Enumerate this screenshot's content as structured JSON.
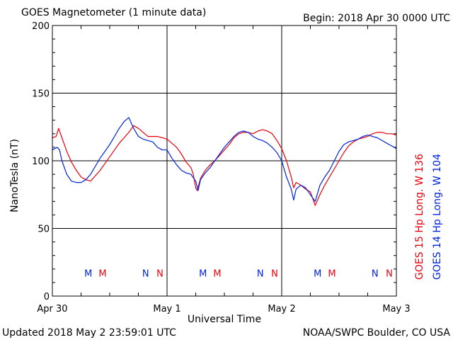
{
  "header": {
    "title": "GOES Magnetometer (1 minute data)",
    "begin": "Begin:  2018 Apr 30 0000 UTC"
  },
  "footer": {
    "updated": "Updated 2018 May  2 23:59:01 UTC",
    "source": "NOAA/SWPC Boulder, CO USA"
  },
  "chart_data": {
    "type": "line",
    "title": "GOES Magnetometer (1 minute data)",
    "xlabel": "Universal Time",
    "ylabel": "NanoTesla (nT)",
    "ylim": [
      0,
      200
    ],
    "xlim": [
      0,
      72
    ],
    "yticks": [
      0,
      50,
      100,
      150,
      200
    ],
    "xticks": [
      {
        "h": 0,
        "label": "Apr 30"
      },
      {
        "h": 24,
        "label": "May 1"
      },
      {
        "h": 48,
        "label": "May 2"
      },
      {
        "h": 72,
        "label": "May 3"
      }
    ],
    "grid": true,
    "legend_placement": "right, vertical",
    "series": [
      {
        "name": "GOES 15 Hp  Long. W 136",
        "color": "#e8000b",
        "points": [
          [
            0,
            117
          ],
          [
            0.8,
            118
          ],
          [
            1.3,
            124
          ],
          [
            2,
            117
          ],
          [
            3,
            107
          ],
          [
            4,
            99
          ],
          [
            5,
            93
          ],
          [
            6,
            88
          ],
          [
            7,
            86
          ],
          [
            8,
            85
          ],
          [
            9,
            89
          ],
          [
            10,
            93
          ],
          [
            11,
            98
          ],
          [
            12,
            103
          ],
          [
            13,
            108
          ],
          [
            14,
            113
          ],
          [
            15,
            117
          ],
          [
            16,
            121
          ],
          [
            17,
            126
          ],
          [
            18,
            124
          ],
          [
            19,
            121
          ],
          [
            20,
            118
          ],
          [
            21,
            118
          ],
          [
            22,
            118
          ],
          [
            23,
            117
          ],
          [
            24,
            116
          ],
          [
            25,
            113
          ],
          [
            26,
            110
          ],
          [
            27,
            105
          ],
          [
            28,
            99
          ],
          [
            29,
            95
          ],
          [
            29.5,
            90
          ],
          [
            30,
            80
          ],
          [
            30.3,
            78
          ],
          [
            31,
            87
          ],
          [
            32,
            93
          ],
          [
            33,
            97
          ],
          [
            34,
            100
          ],
          [
            35,
            104
          ],
          [
            36,
            108
          ],
          [
            37,
            112
          ],
          [
            38,
            117
          ],
          [
            39,
            120
          ],
          [
            40,
            121
          ],
          [
            41,
            121
          ],
          [
            42,
            120
          ],
          [
            43,
            122
          ],
          [
            44,
            123
          ],
          [
            45,
            122
          ],
          [
            46,
            120
          ],
          [
            47,
            115
          ],
          [
            48,
            109
          ],
          [
            49,
            100
          ],
          [
            50,
            88
          ],
          [
            50.5,
            80
          ],
          [
            51,
            84
          ],
          [
            52,
            82
          ],
          [
            53,
            79
          ],
          [
            54,
            77
          ],
          [
            55,
            67
          ],
          [
            56,
            75
          ],
          [
            57,
            82
          ],
          [
            58,
            88
          ],
          [
            59,
            94
          ],
          [
            60,
            100
          ],
          [
            61,
            106
          ],
          [
            62,
            111
          ],
          [
            63,
            114
          ],
          [
            64,
            116
          ],
          [
            65,
            117
          ],
          [
            66,
            118
          ],
          [
            67,
            120
          ],
          [
            68,
            121
          ],
          [
            69,
            121
          ],
          [
            70,
            120
          ],
          [
            71,
            120
          ],
          [
            72,
            119
          ]
        ]
      },
      {
        "name": "GOES 14 Hp  Long. W 104",
        "color": "#0022dd",
        "points": [
          [
            0,
            108
          ],
          [
            1,
            110
          ],
          [
            1.5,
            108
          ],
          [
            2,
            100
          ],
          [
            3,
            90
          ],
          [
            4,
            85
          ],
          [
            5,
            84
          ],
          [
            6,
            84
          ],
          [
            7,
            86
          ],
          [
            8,
            90
          ],
          [
            9,
            96
          ],
          [
            10,
            102
          ],
          [
            11,
            107
          ],
          [
            12,
            112
          ],
          [
            13,
            118
          ],
          [
            14,
            124
          ],
          [
            15,
            129
          ],
          [
            16,
            132
          ],
          [
            17,
            124
          ],
          [
            18,
            118
          ],
          [
            19,
            116
          ],
          [
            20,
            115
          ],
          [
            21,
            114
          ],
          [
            22,
            110
          ],
          [
            23,
            108
          ],
          [
            24,
            108
          ],
          [
            25,
            102
          ],
          [
            26,
            97
          ],
          [
            27,
            93
          ],
          [
            28,
            91
          ],
          [
            29,
            90
          ],
          [
            30,
            85
          ],
          [
            30.5,
            78
          ],
          [
            31,
            86
          ],
          [
            32,
            91
          ],
          [
            33,
            95
          ],
          [
            34,
            100
          ],
          [
            35,
            105
          ],
          [
            36,
            110
          ],
          [
            37,
            114
          ],
          [
            38,
            118
          ],
          [
            39,
            121
          ],
          [
            40,
            122
          ],
          [
            41,
            121
          ],
          [
            42,
            118
          ],
          [
            43,
            116
          ],
          [
            44,
            115
          ],
          [
            45,
            113
          ],
          [
            46,
            110
          ],
          [
            47,
            106
          ],
          [
            48,
            100
          ],
          [
            49,
            88
          ],
          [
            50,
            79
          ],
          [
            50.5,
            71
          ],
          [
            51,
            79
          ],
          [
            52,
            82
          ],
          [
            53,
            80
          ],
          [
            54,
            75
          ],
          [
            55,
            70
          ],
          [
            56,
            82
          ],
          [
            57,
            88
          ],
          [
            58,
            93
          ],
          [
            59,
            100
          ],
          [
            60,
            107
          ],
          [
            61,
            112
          ],
          [
            62,
            114
          ],
          [
            63,
            115
          ],
          [
            64,
            116
          ],
          [
            65,
            118
          ],
          [
            66,
            119
          ],
          [
            67,
            118
          ],
          [
            68,
            117
          ],
          [
            69,
            115
          ],
          [
            70,
            113
          ],
          [
            71,
            111
          ],
          [
            72,
            109
          ]
        ]
      }
    ],
    "markers": [
      {
        "label": "M",
        "hour": 9,
        "color": "#0022dd"
      },
      {
        "label": "M",
        "hour": 12,
        "color": "#e8000b"
      },
      {
        "label": "N",
        "hour": 21,
        "color": "#0022dd"
      },
      {
        "label": "N",
        "hour": 24,
        "color": "#e8000b"
      },
      {
        "label": "M",
        "hour": 33,
        "color": "#0022dd"
      },
      {
        "label": "M",
        "hour": 36,
        "color": "#e8000b"
      },
      {
        "label": "N",
        "hour": 45,
        "color": "#0022dd"
      },
      {
        "label": "N",
        "hour": 48,
        "color": "#e8000b"
      },
      {
        "label": "M",
        "hour": 57,
        "color": "#0022dd"
      },
      {
        "label": "M",
        "hour": 60,
        "color": "#e8000b"
      },
      {
        "label": "N",
        "hour": 69,
        "color": "#0022dd"
      },
      {
        "label": "N",
        "hour": 72,
        "color": "#e8000b"
      }
    ],
    "marker_value": 17
  }
}
